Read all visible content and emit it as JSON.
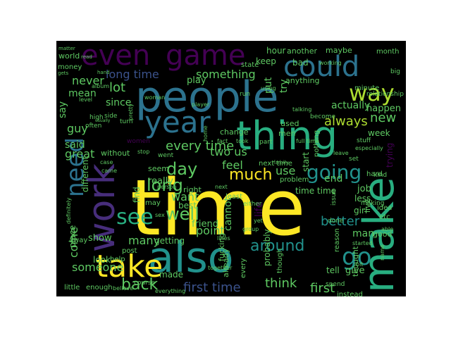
{
  "palette": {
    "dark_purple": "#440154",
    "indigo": "#472d7b",
    "blue": "#3b528b",
    "steel": "#2c728e",
    "teal": "#21918c",
    "green_teal": "#28ae80",
    "green": "#5ec962",
    "lime": "#addc30",
    "yellow": "#fde725"
  },
  "words": [
    {
      "text": "time",
      "color": "yellow"
    },
    {
      "text": "people",
      "color": "steel"
    },
    {
      "text": "also",
      "color": "teal"
    },
    {
      "text": "make",
      "color": "green_teal"
    },
    {
      "text": "thing",
      "color": "green_teal"
    },
    {
      "text": "work",
      "color": "indigo"
    },
    {
      "text": "take",
      "color": "yellow"
    },
    {
      "text": "even",
      "color": "dark_purple"
    },
    {
      "text": "game",
      "color": "dark_purple"
    },
    {
      "text": "could",
      "color": "steel"
    },
    {
      "text": "year",
      "color": "steel"
    },
    {
      "text": "way",
      "color": "lime"
    },
    {
      "text": "need",
      "color": "steel"
    },
    {
      "text": "see",
      "color": "green_teal"
    },
    {
      "text": "go",
      "color": "teal"
    },
    {
      "text": "going",
      "color": "teal"
    },
    {
      "text": "long",
      "color": "green"
    },
    {
      "text": "day",
      "color": "green"
    },
    {
      "text": "much",
      "color": "yellow"
    },
    {
      "text": "well",
      "color": "green"
    },
    {
      "text": "back",
      "color": "green"
    },
    {
      "text": "around",
      "color": "teal"
    },
    {
      "text": "new",
      "color": "green"
    },
    {
      "text": "lot",
      "color": "green"
    },
    {
      "text": "always",
      "color": "lime"
    },
    {
      "text": "every time",
      "color": "green"
    },
    {
      "text": "long time",
      "color": "blue"
    },
    {
      "text": "something",
      "color": "green"
    },
    {
      "text": "never",
      "color": "green"
    },
    {
      "text": "first time",
      "color": "blue"
    },
    {
      "text": "first",
      "color": "green"
    },
    {
      "text": "think",
      "color": "green"
    },
    {
      "text": "someone",
      "color": "green"
    },
    {
      "text": "many",
      "color": "green"
    },
    {
      "text": "better",
      "color": "teal"
    },
    {
      "text": "point",
      "color": "green"
    },
    {
      "text": "feel",
      "color": "green"
    },
    {
      "text": "use",
      "color": "green"
    },
    {
      "text": "two us",
      "color": "green"
    },
    {
      "text": "want",
      "color": "green"
    },
    {
      "text": "come",
      "color": "green"
    },
    {
      "text": "guy",
      "color": "green"
    },
    {
      "text": "say",
      "color": "green"
    },
    {
      "text": "said",
      "color": "green"
    },
    {
      "text": "mean",
      "color": "green"
    },
    {
      "text": "great",
      "color": "green"
    },
    {
      "text": "since",
      "color": "green"
    },
    {
      "text": "put",
      "color": "green"
    },
    {
      "text": "try",
      "color": "green"
    },
    {
      "text": "keep",
      "color": "green"
    },
    {
      "text": "actually",
      "color": "green"
    },
    {
      "text": "happen",
      "color": "green"
    },
    {
      "text": "bad",
      "color": "green"
    },
    {
      "text": "hour",
      "color": "green"
    },
    {
      "text": "another",
      "color": "green"
    },
    {
      "text": "maybe",
      "color": "green"
    },
    {
      "text": "month",
      "color": "green"
    },
    {
      "text": "anything",
      "color": "green"
    },
    {
      "text": "week",
      "color": "green"
    },
    {
      "text": "end",
      "color": "green"
    },
    {
      "text": "job",
      "color": "green"
    },
    {
      "text": "less",
      "color": "green"
    },
    {
      "text": "girl",
      "color": "green"
    },
    {
      "text": "man",
      "color": "green"
    },
    {
      "text": "good",
      "color": "green"
    },
    {
      "text": "give",
      "color": "green"
    },
    {
      "text": "tell",
      "color": "green"
    },
    {
      "text": "made",
      "color": "green"
    },
    {
      "text": "show",
      "color": "green"
    },
    {
      "text": "place",
      "color": "green"
    },
    {
      "text": "look",
      "color": "green"
    },
    {
      "text": "friend",
      "color": "green"
    },
    {
      "text": "cannot",
      "color": "green"
    },
    {
      "text": "really",
      "color": "green"
    },
    {
      "text": "different",
      "color": "green"
    },
    {
      "text": "probably",
      "color": "green"
    },
    {
      "text": "life",
      "color": "dark_purple"
    },
    {
      "text": "start",
      "color": "green"
    },
    {
      "text": "time time",
      "color": "green"
    },
    {
      "text": "used",
      "color": "green"
    },
    {
      "text": "men",
      "color": "green"
    },
    {
      "text": "stop",
      "color": "green"
    },
    {
      "text": "without",
      "color": "green"
    },
    {
      "text": "best",
      "color": "green"
    },
    {
      "text": "right",
      "color": "green"
    },
    {
      "text": "getting",
      "color": "green"
    },
    {
      "text": "seem",
      "color": "green"
    },
    {
      "text": "find",
      "color": "green"
    },
    {
      "text": "may",
      "color": "green"
    },
    {
      "text": "money",
      "color": "green"
    },
    {
      "text": "world",
      "color": "green"
    },
    {
      "text": "state",
      "color": "green"
    },
    {
      "text": "play",
      "color": "green"
    },
    {
      "text": "little",
      "color": "green"
    },
    {
      "text": "enough",
      "color": "green"
    },
    {
      "text": "thought",
      "color": "green"
    },
    {
      "text": "live",
      "color": "green"
    },
    {
      "text": "idea",
      "color": "green"
    },
    {
      "text": "next time",
      "color": "green"
    },
    {
      "text": "problem",
      "color": "green"
    },
    {
      "text": "change",
      "color": "green"
    },
    {
      "text": "away",
      "color": "green"
    },
    {
      "text": "post",
      "color": "green"
    },
    {
      "text": "help",
      "color": "green"
    },
    {
      "text": "fucking",
      "color": "green"
    },
    {
      "text": "already",
      "color": "green"
    },
    {
      "text": "every",
      "color": "green"
    },
    {
      "text": "reason",
      "color": "green"
    },
    {
      "text": "instead",
      "color": "green"
    },
    {
      "text": "spend",
      "color": "green"
    },
    {
      "text": "done",
      "color": "green"
    },
    {
      "text": "making",
      "color": "green"
    },
    {
      "text": "least",
      "color": "green"
    },
    {
      "text": "either",
      "color": "green"
    },
    {
      "text": "nothing",
      "color": "green"
    },
    {
      "text": "though",
      "color": "green"
    },
    {
      "text": "minute",
      "color": "green"
    },
    {
      "text": "relationship",
      "color": "green"
    },
    {
      "text": "stuff",
      "color": "green"
    },
    {
      "text": "set",
      "color": "green"
    },
    {
      "text": "big",
      "color": "green"
    },
    {
      "text": "become",
      "color": "green"
    },
    {
      "text": "working",
      "color": "green"
    },
    {
      "text": "using",
      "color": "green"
    },
    {
      "text": "run",
      "color": "green"
    },
    {
      "text": "part",
      "color": "green"
    },
    {
      "text": "turn",
      "color": "green"
    },
    {
      "text": "side",
      "color": "green"
    },
    {
      "text": "high",
      "color": "green"
    },
    {
      "text": "often",
      "color": "green"
    },
    {
      "text": "level",
      "color": "green"
    },
    {
      "text": "album",
      "color": "green"
    },
    {
      "text": "matter",
      "color": "green"
    },
    {
      "text": "gets",
      "color": "green"
    },
    {
      "text": "player",
      "color": "green"
    },
    {
      "text": "woman",
      "color": "green"
    },
    {
      "text": "women",
      "color": "dark_purple"
    },
    {
      "text": "full time",
      "color": "green"
    },
    {
      "text": "etc",
      "color": "green"
    },
    {
      "text": "able",
      "color": "green"
    },
    {
      "text": "started",
      "color": "green"
    },
    {
      "text": "bit",
      "color": "green"
    },
    {
      "text": "together",
      "color": "green"
    },
    {
      "text": "course",
      "color": "green"
    },
    {
      "text": "believe",
      "color": "green"
    },
    {
      "text": "everything",
      "color": "green"
    },
    {
      "text": "definitely",
      "color": "green"
    },
    {
      "text": "hard",
      "color": "green"
    },
    {
      "text": "kind",
      "color": "green"
    },
    {
      "text": "group",
      "color": "green"
    },
    {
      "text": "case",
      "color": "green"
    },
    {
      "text": "came",
      "color": "green"
    },
    {
      "text": "went",
      "color": "green"
    },
    {
      "text": "person",
      "color": "green"
    },
    {
      "text": "yet",
      "color": "green"
    },
    {
      "text": "talking",
      "color": "green"
    },
    {
      "text": "especially",
      "color": "green"
    },
    {
      "text": "leave",
      "color": "green"
    },
    {
      "text": "trying",
      "color": "dark_purple"
    },
    {
      "text": "home",
      "color": "green"
    },
    {
      "text": "read",
      "color": "green"
    },
    {
      "text": "hand",
      "color": "green"
    },
    {
      "text": "usually",
      "color": "green"
    },
    {
      "text": "pretty",
      "color": "green"
    },
    {
      "text": "issue",
      "color": "green"
    },
    {
      "text": "name",
      "color": "green"
    },
    {
      "text": "lines",
      "color": "green"
    },
    {
      "text": "fact",
      "color": "green"
    },
    {
      "text": "took",
      "color": "green"
    },
    {
      "text": "family",
      "color": "green"
    },
    {
      "text": "sex",
      "color": "green"
    },
    {
      "text": "next",
      "color": "green"
    }
  ]
}
